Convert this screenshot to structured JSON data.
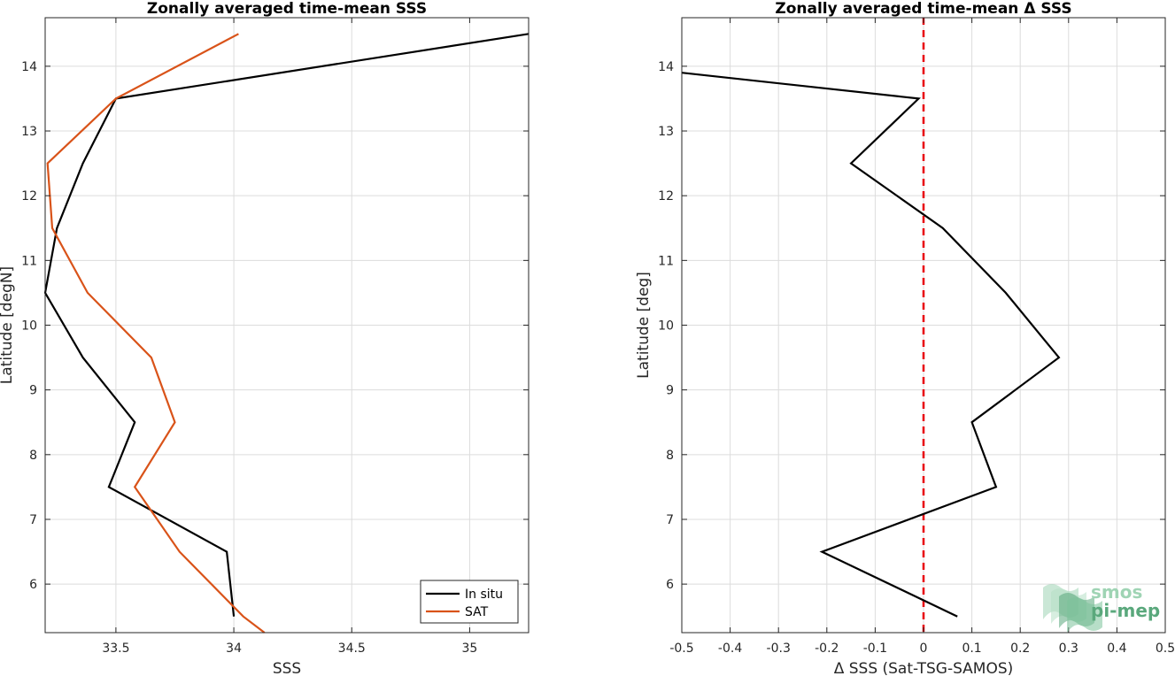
{
  "chart_data": [
    {
      "type": "line",
      "title": "Zonally averaged time-mean SSS",
      "xlabel": "SSS",
      "ylabel": "Latitude [degN]",
      "xlim": [
        33.2,
        35.25
      ],
      "ylim": [
        5.25,
        14.75
      ],
      "xticks": [
        33.5,
        34,
        34.5,
        35
      ],
      "xtick_labels": [
        "33.5",
        "34",
        "34.5",
        "35"
      ],
      "yticks": [
        6,
        7,
        8,
        9,
        10,
        11,
        12,
        13,
        14
      ],
      "ytick_labels": [
        "6",
        "7",
        "8",
        "9",
        "10",
        "11",
        "12",
        "13",
        "14"
      ],
      "grid": true,
      "legend_position": "bottom-right",
      "series": [
        {
          "name": "In situ",
          "color": "#000000",
          "points": [
            [
              34.0,
              5.5
            ],
            [
              33.97,
              6.5
            ],
            [
              33.47,
              7.5
            ],
            [
              33.58,
              8.5
            ],
            [
              33.36,
              9.5
            ],
            [
              33.2,
              10.5
            ],
            [
              33.25,
              11.5
            ],
            [
              33.36,
              12.5
            ],
            [
              33.5,
              13.5
            ],
            [
              35.25,
              14.5
            ]
          ]
        },
        {
          "name": "SAT",
          "color": "#d95319",
          "points": [
            [
              34.13,
              5.25
            ],
            [
              34.04,
              5.5
            ],
            [
              33.77,
              6.5
            ],
            [
              33.58,
              7.5
            ],
            [
              33.75,
              8.5
            ],
            [
              33.65,
              9.5
            ],
            [
              33.38,
              10.5
            ],
            [
              33.23,
              11.5
            ],
            [
              33.21,
              12.5
            ],
            [
              33.5,
              13.5
            ],
            [
              34.02,
              14.5
            ]
          ]
        }
      ]
    },
    {
      "type": "line",
      "title": "Zonally averaged time-mean Δ SSS",
      "xlabel": "Δ SSS (Sat-TSG-SAMOS)",
      "ylabel": "Latitude [deg]",
      "xlim": [
        -0.5,
        0.5
      ],
      "ylim": [
        5.25,
        14.75
      ],
      "xticks": [
        -0.5,
        -0.4,
        -0.3,
        -0.2,
        -0.1,
        0,
        0.1,
        0.2,
        0.3,
        0.4,
        0.5
      ],
      "xtick_labels": [
        "-0.5",
        "-0.4",
        "-0.3",
        "-0.2",
        "-0.1",
        "0",
        "0.1",
        "0.2",
        "0.3",
        "0.4",
        "0.5"
      ],
      "yticks": [
        6,
        7,
        8,
        9,
        10,
        11,
        12,
        13,
        14
      ],
      "ytick_labels": [
        "6",
        "7",
        "8",
        "9",
        "10",
        "11",
        "12",
        "13",
        "14"
      ],
      "grid": true,
      "reference_line": {
        "x": 0,
        "color": "#e8000b",
        "style": "dashed"
      },
      "series": [
        {
          "color": "#000000",
          "points": [
            [
              0.07,
              5.5
            ],
            [
              -0.21,
              6.5
            ],
            [
              0.15,
              7.5
            ],
            [
              0.1,
              8.5
            ],
            [
              0.28,
              9.5
            ],
            [
              0.17,
              10.5
            ],
            [
              0.04,
              11.5
            ],
            [
              -0.15,
              12.5
            ],
            [
              -0.01,
              13.5
            ],
            [
              -0.5,
              13.9
            ]
          ]
        }
      ]
    }
  ],
  "logo": {
    "line1": "smos",
    "line2": "pi-mep",
    "color_light": "#9fd4b4",
    "color_dark": "#5aa87c"
  }
}
